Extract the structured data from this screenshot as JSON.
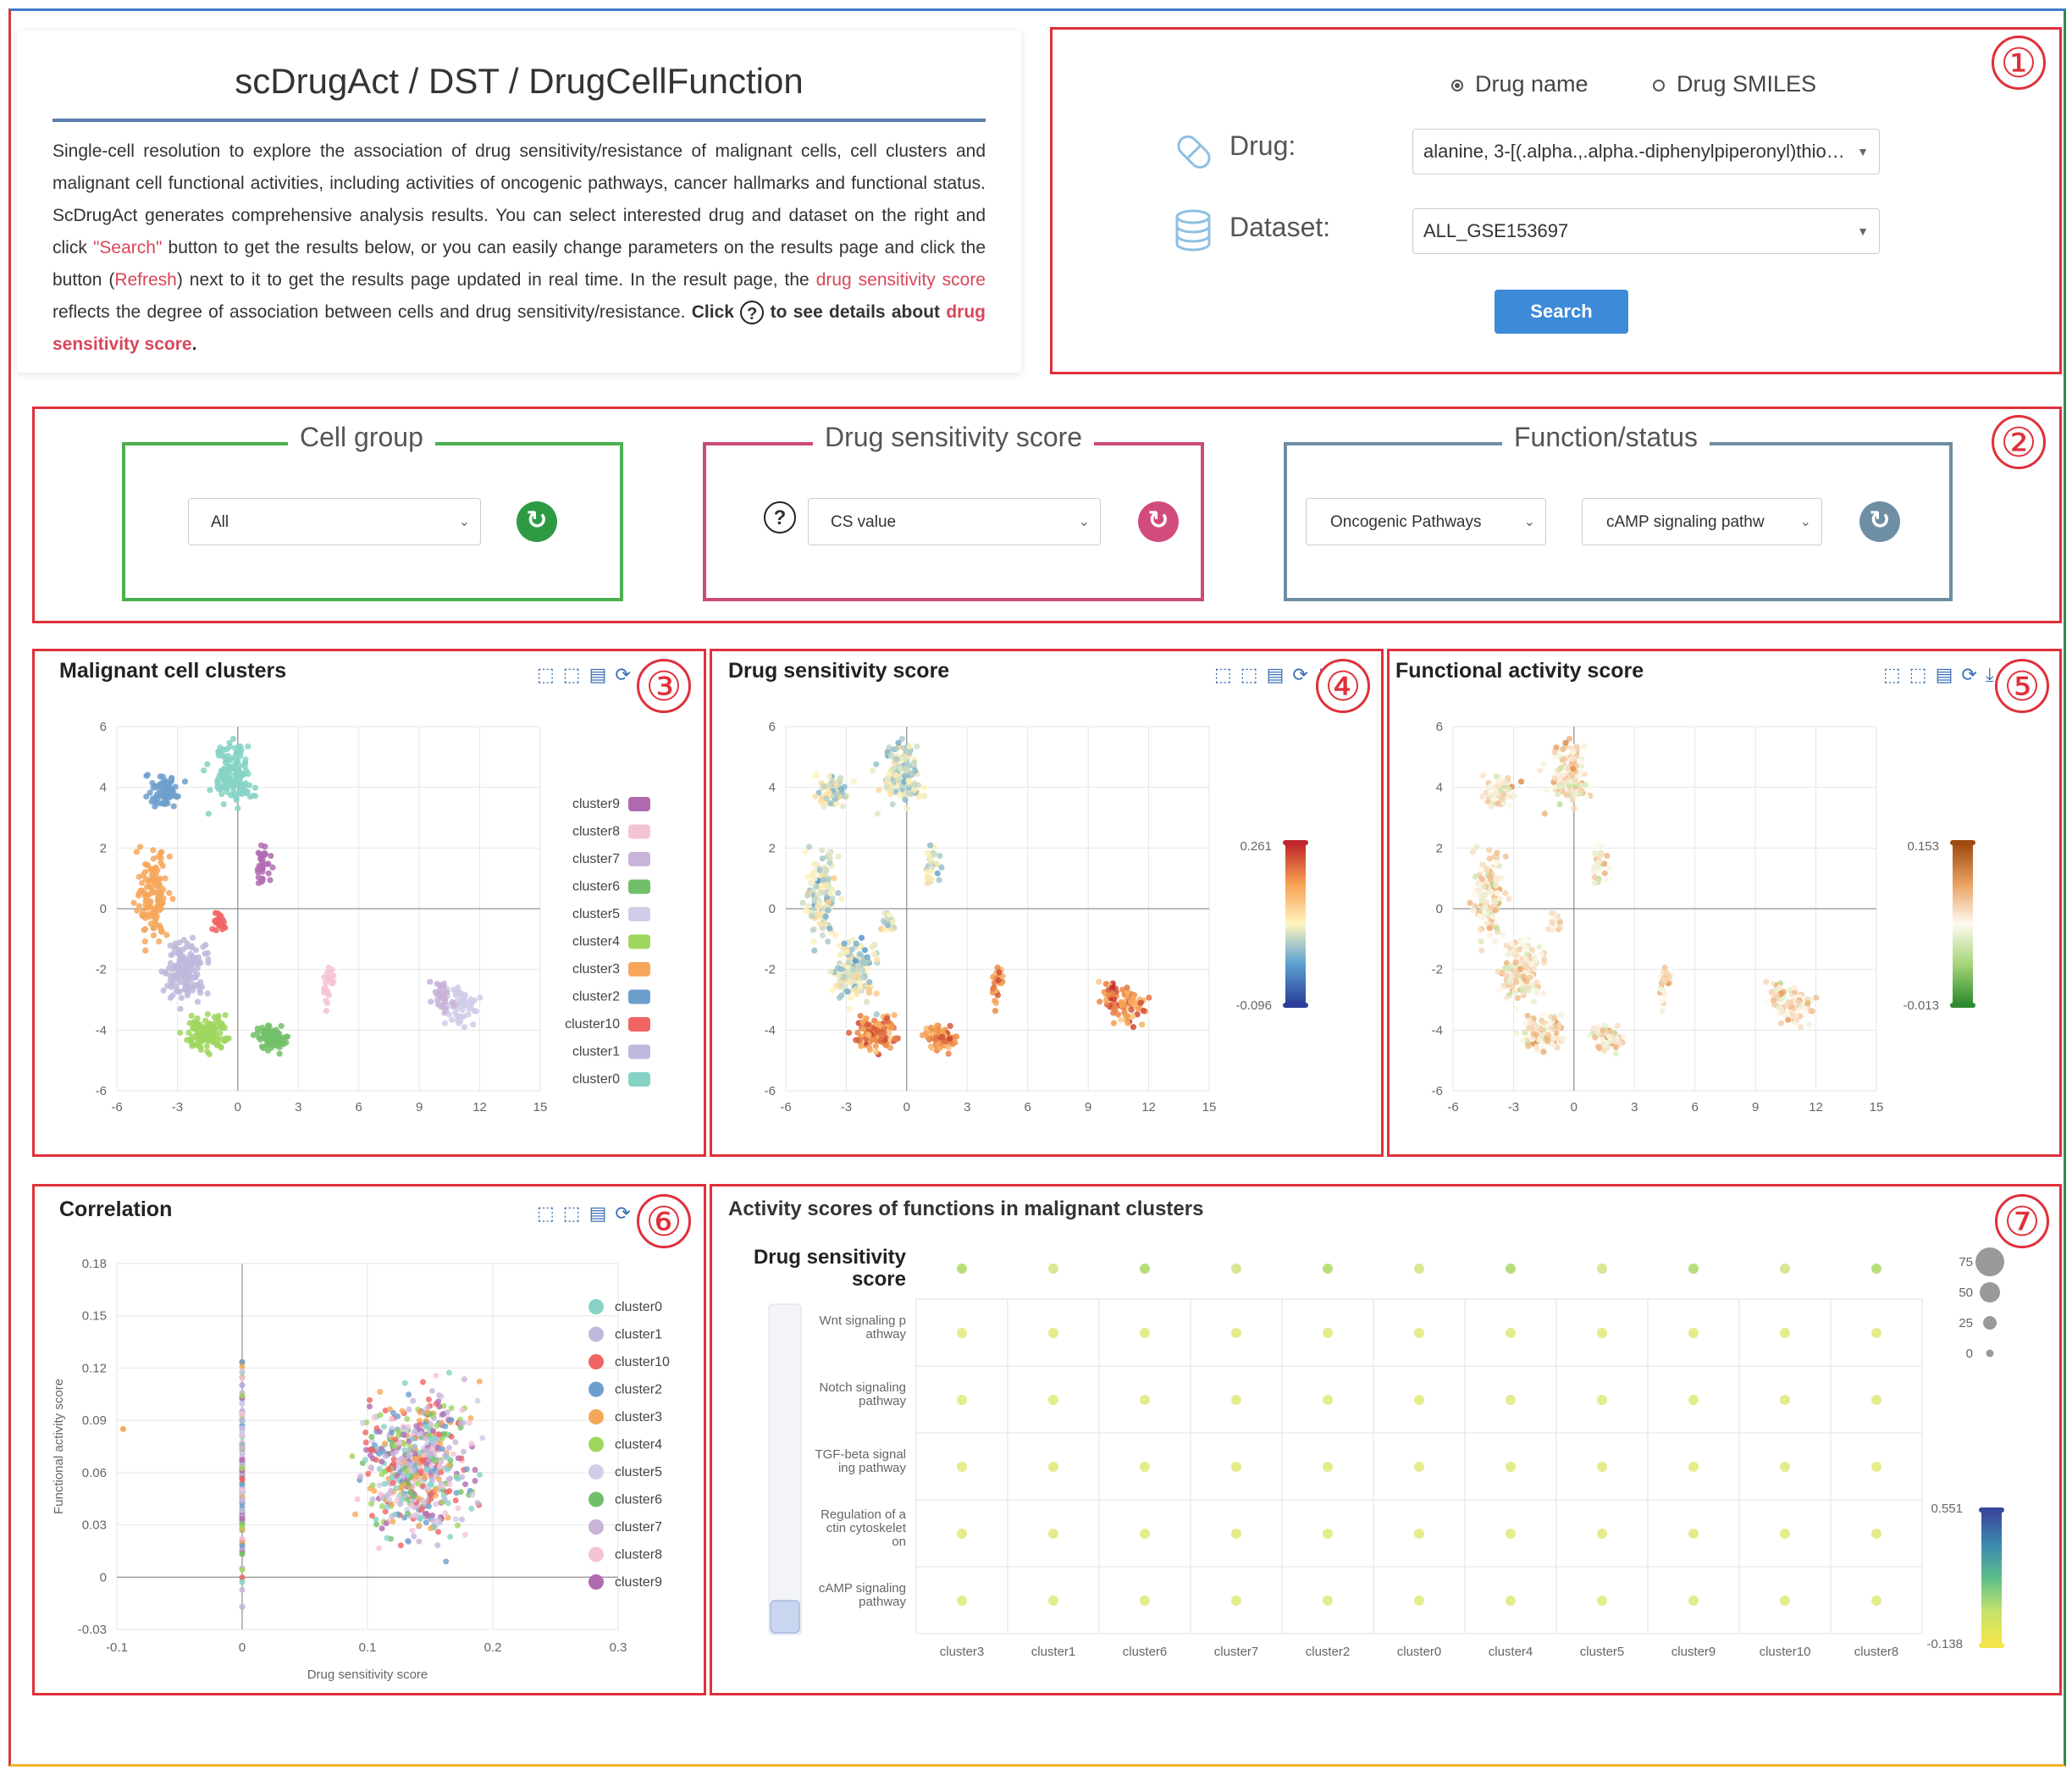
{
  "header": {
    "title": "scDrugAct / DST / DrugCellFunction",
    "desc_1": "Single-cell resolution to explore the association of drug sensitivity/resistance of malignant cells, cell clusters and malignant cell functional activities, including activities of oncogenic pathways, cancer hallmarks and functional status. ScDrugAct generates comprehensive analysis results. You can select interested drug and dataset on the right and click ",
    "desc_search": "\"Search\"",
    "desc_2": " button to get the results below, or you can easily change parameters on the results page and click the button (",
    "desc_refresh": "Refresh",
    "desc_3": ") next to it to get the results page updated in real time. In the result page, the ",
    "desc_dss": "drug sensitivity score",
    "desc_4": " reflects the degree of association between cells and drug sensitivity/resistance. ",
    "desc_click": "Click",
    "desc_5": " to see details about ",
    "desc_dss2": "drug sensitivity score",
    "desc_end": "."
  },
  "search_form": {
    "radio_drug_name": "Drug name",
    "radio_drug_smiles": "Drug SMILES",
    "drug_label": "Drug:",
    "drug_value": "alanine, 3-[(.alpha.,.alpha.-diphenylpiperonyl)thio]...",
    "dataset_label": "Dataset:",
    "dataset_value": "ALL_GSE153697",
    "search_button": "Search"
  },
  "badges": [
    "①",
    "②",
    "③",
    "④",
    "⑤",
    "⑥",
    "⑦"
  ],
  "controls": {
    "cell_group_title": "Cell group",
    "cell_group_value": "All",
    "dss_title": "Drug sensitivity score",
    "dss_value": "CS value",
    "function_title": "Function/status",
    "function_category": "Oncogenic Pathways",
    "function_value": "cAMP signaling pathw",
    "help_symbol": "?",
    "refresh_symbol": "↻",
    "colors": {
      "cell_group": "#4caf50",
      "dss": "#cc4a7a",
      "function": "#6e8fa3"
    }
  },
  "panels": {
    "malignant_title": "Malignant cell clusters",
    "dss_title": "Drug sensitivity score",
    "functional_title": "Functional activity score",
    "correlation_title": "Correlation",
    "activity_title": "Activity scores of functions in malignant clusters",
    "toolbar_icons": [
      "zoom-icon",
      "zoom-reset-icon",
      "data-view-icon",
      "restore-icon",
      "download-icon"
    ]
  },
  "chart_data": [
    {
      "type": "scatter",
      "title": "Malignant cell clusters",
      "xticks": [
        "-6",
        "-3",
        "0",
        "3",
        "6",
        "9",
        "12",
        "15"
      ],
      "yticks": [
        "6",
        "4",
        "2",
        "0",
        "-2",
        "-4",
        "-6"
      ],
      "xlim": [
        -6,
        15
      ],
      "ylim": [
        -6,
        6
      ],
      "legend": [
        "cluster9",
        "cluster8",
        "cluster7",
        "cluster6",
        "cluster5",
        "cluster4",
        "cluster3",
        "cluster2",
        "cluster10",
        "cluster1",
        "cluster0"
      ],
      "legend_colors": [
        "#b06bb0",
        "#f5c3d6",
        "#c9b3d8",
        "#72bf6a",
        "#cfcde8",
        "#9fd65f",
        "#f6a75a",
        "#6d9fcc",
        "#f06464",
        "#c0b8dc",
        "#86d3c6"
      ]
    },
    {
      "type": "scatter",
      "title": "Drug sensitivity score",
      "xticks": [
        "-6",
        "-3",
        "0",
        "3",
        "6",
        "9",
        "12",
        "15"
      ],
      "yticks": [
        "6",
        "4",
        "2",
        "0",
        "-2",
        "-4",
        "-6"
      ],
      "xlim": [
        -6,
        15
      ],
      "ylim": [
        -6,
        6
      ],
      "colorbar": {
        "max": "0.261",
        "min": "-0.096"
      }
    },
    {
      "type": "scatter",
      "title": "Functional activity score",
      "xticks": [
        "-6",
        "-3",
        "0",
        "3",
        "6",
        "9",
        "12",
        "15"
      ],
      "yticks": [
        "6",
        "4",
        "2",
        "0",
        "-2",
        "-4",
        "-6"
      ],
      "xlim": [
        -6,
        15
      ],
      "ylim": [
        -6,
        6
      ],
      "colorbar": {
        "max": "0.153",
        "min": "-0.013"
      }
    },
    {
      "type": "scatter",
      "title": "Correlation",
      "xlabel": "Drug sensitivity score",
      "ylabel": "Functional activity score",
      "xticks": [
        "-0.1",
        "0",
        "0.1",
        "0.2",
        "0.3"
      ],
      "yticks": [
        "0.18",
        "0.15",
        "0.12",
        "0.09",
        "0.06",
        "0.03",
        "0",
        "-0.03"
      ],
      "xlim": [
        -0.1,
        0.3
      ],
      "ylim": [
        -0.03,
        0.18
      ],
      "legend": [
        "cluster0",
        "cluster1",
        "cluster10",
        "cluster2",
        "cluster3",
        "cluster4",
        "cluster5",
        "cluster6",
        "cluster7",
        "cluster8",
        "cluster9"
      ],
      "legend_colors": [
        "#86d3c6",
        "#c0b8dc",
        "#f06464",
        "#6d9fcc",
        "#f6a75a",
        "#9fd65f",
        "#cfcde8",
        "#72bf6a",
        "#c9b3d8",
        "#f5c3d6",
        "#b06bb0"
      ]
    },
    {
      "type": "heatmap",
      "title": "Activity scores of functions in malignant clusters",
      "top_row_label": "Drug sensitivity score",
      "rows": [
        "Wnt signaling pathway",
        "Notch signaling pathway",
        "TGF-beta signaling pathway",
        "Regulation of actin cytoskeleton",
        "cAMP signaling pathway"
      ],
      "row_labels_wrapped": [
        [
          "Wnt signaling p",
          "athway"
        ],
        [
          "Notch signaling",
          "pathway"
        ],
        [
          "TGF-beta signal",
          "ing pathway"
        ],
        [
          "Regulation of a",
          "ctin cytoskelet",
          "on"
        ],
        [
          "cAMP signaling",
          "pathway"
        ]
      ],
      "columns": [
        "cluster3",
        "cluster1",
        "cluster6",
        "cluster7",
        "cluster2",
        "cluster0",
        "cluster4",
        "cluster5",
        "cluster9",
        "cluster10",
        "cluster8"
      ],
      "size_legend": [
        "75",
        "50",
        "25",
        "0"
      ],
      "colorbar": {
        "max": "0.551",
        "min": "-0.138"
      }
    }
  ]
}
